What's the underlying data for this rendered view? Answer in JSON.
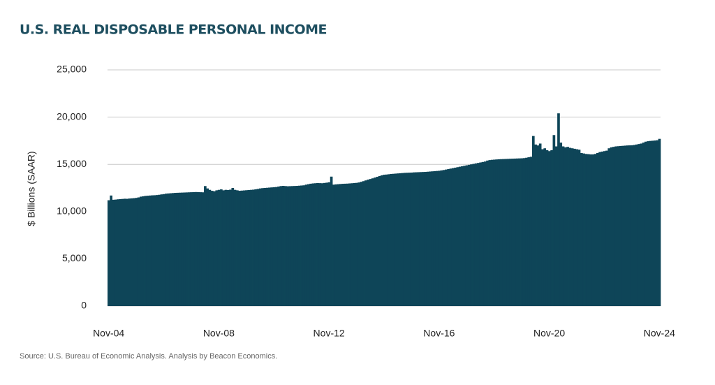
{
  "chart_data": {
    "type": "bar",
    "title": "U.S. REAL DISPOSABLE PERSONAL INCOME",
    "y_label": "$ Billions (SAAR)",
    "source": "Source: U.S. Bureau of Economic Analysis. Analysis by Beacon Economics.",
    "color": "#0e4558",
    "grid": true,
    "ylim": [
      0,
      25000
    ],
    "yticks": [
      0,
      {
        "value": 5000,
        "label": "5,000"
      },
      {
        "value": 10000,
        "label": "10,000"
      },
      {
        "value": 15000,
        "label": "15,000"
      },
      {
        "value": 20000,
        "label": "20,000"
      },
      {
        "value": 25000,
        "label": "25,000"
      }
    ],
    "categories": [
      "Nov-04",
      null,
      null,
      null,
      null,
      null,
      null,
      null,
      null,
      null,
      null,
      null,
      null,
      null,
      null,
      null,
      null,
      null,
      null,
      null,
      null,
      null,
      null,
      null,
      null,
      null,
      null,
      null,
      null,
      null,
      null,
      null,
      null,
      null,
      null,
      null,
      null,
      null,
      null,
      null,
      null,
      null,
      null,
      null,
      null,
      null,
      null,
      null,
      "Nov-08",
      null,
      null,
      null,
      null,
      null,
      null,
      null,
      null,
      null,
      null,
      null,
      null,
      null,
      null,
      null,
      null,
      null,
      null,
      null,
      null,
      null,
      null,
      null,
      null,
      null,
      null,
      null,
      null,
      null,
      null,
      null,
      null,
      null,
      null,
      null,
      null,
      null,
      null,
      null,
      null,
      null,
      null,
      null,
      null,
      null,
      null,
      null,
      "Nov-12",
      null,
      null,
      null,
      null,
      null,
      null,
      null,
      null,
      null,
      null,
      null,
      null,
      null,
      null,
      null,
      null,
      null,
      null,
      null,
      null,
      null,
      null,
      null,
      null,
      null,
      null,
      null,
      null,
      null,
      null,
      null,
      null,
      null,
      null,
      null,
      null,
      null,
      null,
      null,
      null,
      null,
      null,
      null,
      null,
      null,
      null,
      null,
      "Nov-16",
      null,
      null,
      null,
      null,
      null,
      null,
      null,
      null,
      null,
      null,
      null,
      null,
      null,
      null,
      null,
      null,
      null,
      null,
      null,
      null,
      null,
      null,
      null,
      null,
      null,
      null,
      null,
      null,
      null,
      null,
      null,
      null,
      null,
      null,
      null,
      null,
      null,
      null,
      null,
      null,
      null,
      null,
      null,
      null,
      null,
      null,
      null,
      "Nov-20",
      null,
      null,
      null,
      null,
      null,
      null,
      null,
      null,
      null,
      null,
      null,
      null,
      null,
      null,
      null,
      null,
      null,
      null,
      null,
      null,
      null,
      null,
      null,
      null,
      null,
      null,
      null,
      null,
      null,
      null,
      null,
      null,
      null,
      null,
      null,
      null,
      null,
      null,
      null,
      null,
      null,
      null,
      null,
      null,
      null,
      null,
      null,
      "Nov-24"
    ],
    "values": [
      11200,
      11700,
      11250,
      11270,
      11300,
      11320,
      11340,
      11360,
      11350,
      11380,
      11400,
      11420,
      11450,
      11500,
      11580,
      11620,
      11660,
      11680,
      11700,
      11720,
      11730,
      11750,
      11780,
      11820,
      11850,
      11900,
      11920,
      11940,
      11960,
      11980,
      11990,
      12000,
      12010,
      12020,
      12030,
      12040,
      12050,
      12060,
      12070,
      12060,
      12050,
      12040,
      12700,
      12450,
      12300,
      12200,
      12150,
      12250,
      12300,
      12350,
      12250,
      12300,
      12280,
      12320,
      12500,
      12300,
      12250,
      12200,
      12220,
      12240,
      12260,
      12280,
      12300,
      12320,
      12360,
      12400,
      12450,
      12480,
      12500,
      12520,
      12540,
      12560,
      12580,
      12600,
      12650,
      12700,
      12720,
      12700,
      12680,
      12690,
      12700,
      12710,
      12720,
      12740,
      12760,
      12780,
      12850,
      12900,
      12950,
      12980,
      13000,
      13020,
      13010,
      13000,
      13030,
      13060,
      13100,
      13700,
      12850,
      12880,
      12900,
      12920,
      12940,
      12950,
      12960,
      12980,
      13000,
      13020,
      13040,
      13080,
      13150,
      13220,
      13300,
      13380,
      13450,
      13520,
      13600,
      13680,
      13760,
      13840,
      13900,
      13920,
      13950,
      13980,
      14000,
      14020,
      14040,
      14060,
      14080,
      14100,
      14110,
      14120,
      14130,
      14150,
      14160,
      14170,
      14180,
      14190,
      14200,
      14220,
      14240,
      14260,
      14280,
      14300,
      14320,
      14360,
      14400,
      14450,
      14500,
      14550,
      14600,
      14650,
      14700,
      14750,
      14800,
      14850,
      14900,
      14950,
      15000,
      15050,
      15100,
      15150,
      15200,
      15250,
      15300,
      15400,
      15450,
      15480,
      15500,
      15520,
      15540,
      15550,
      15560,
      15570,
      15580,
      15590,
      15600,
      15610,
      15620,
      15630,
      15640,
      15660,
      15700,
      15750,
      15800,
      18000,
      17100,
      17000,
      17200,
      16600,
      16700,
      16500,
      16400,
      16500,
      18100,
      16900,
      20400,
      17300,
      16900,
      16800,
      16850,
      16750,
      16700,
      16650,
      16600,
      16550,
      16200,
      16150,
      16100,
      16080,
      16050,
      16050,
      16100,
      16200,
      16300,
      16350,
      16400,
      16450,
      16700,
      16800,
      16850,
      16900,
      16920,
      16940,
      16960,
      16980,
      17000,
      17010,
      17020,
      17050,
      17100,
      17150,
      17200,
      17300,
      17400,
      17450,
      17480,
      17500,
      17520,
      17550,
      17700
    ]
  }
}
